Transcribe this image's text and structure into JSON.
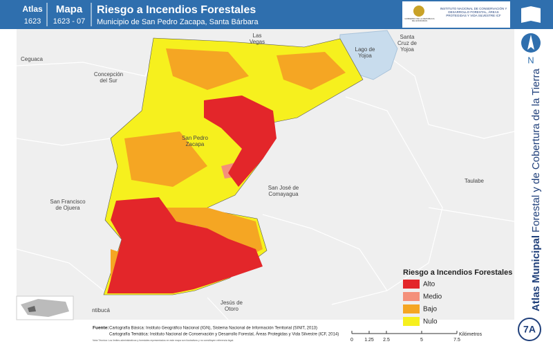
{
  "header": {
    "atlas_label": "Atlas",
    "atlas_code": "1623",
    "map_label": "Mapa",
    "map_code": "1623 - 07",
    "title": "Riesgo a Incendios Forestales",
    "subtitle": "Municipio de San Pedro Zacapa, Santa Bárbara",
    "logo_left": "GOBIERNO DE LA REPÚBLICA DE HONDURAS",
    "logo_right": "INSTITUTO NACIONAL DE CONSERVACIÓN Y DESARROLLO FORESTAL, ÁREAS PROTEGIDAS Y VIDA SILVESTRE ICF"
  },
  "side": {
    "north": "N",
    "atlas_bold": "Atlas Municipal",
    "atlas_rest": "Forestal y de Cobertura de la Tierra",
    "badge": "7A"
  },
  "places": [
    {
      "lines": [
        "Las",
        "Vegas"
      ]
    },
    {
      "lines": [
        "Santa",
        "Cruz de",
        "Yojoa"
      ]
    },
    {
      "lines": [
        "Lago de",
        "Yojoa"
      ]
    },
    {
      "lines": [
        "Ceguaca"
      ]
    },
    {
      "lines": [
        "Concepción",
        "del Sur"
      ]
    },
    {
      "lines": [
        "San Pedro",
        "Zacapa"
      ]
    },
    {
      "lines": [
        "San José de",
        "Comayagua"
      ]
    },
    {
      "lines": [
        "Taulabe"
      ]
    },
    {
      "lines": [
        "San Francisco",
        "de Ojuera"
      ]
    },
    {
      "lines": [
        "Jesús de",
        "Otoro"
      ]
    },
    {
      "lines": [
        "ntibucá"
      ]
    }
  ],
  "legend": {
    "title": "Riesgo a Incendios Forestales",
    "items": [
      {
        "label": "Alto",
        "color": "#e3262a"
      },
      {
        "label": "Medio",
        "color": "#f4907a"
      },
      {
        "label": "Bajo",
        "color": "#f5a623"
      },
      {
        "label": "Nulo",
        "color": "#f6f01e"
      }
    ]
  },
  "footer": {
    "source_label": "Fuente:",
    "lines": [
      "Cartografía Básica: Instituto Geográfico Nacional (IGN), Sistema Nacional de Información Territorial (SINIT, 2013)",
      "Cartografía Temática: Instituto Nacional de Conservación y Desarrollo Forestal, Áreas Protegidas y Vida Silvestre (ICF, 2014)"
    ],
    "note": "Nota Técnica: Los límites administrativos y forestales representados en este mapa son ilustrativos y no constituyen referencia legal."
  },
  "scale": {
    "ticks": [
      "0",
      "1.25",
      "2.5",
      "5",
      "7.5"
    ],
    "unit": "Kilómetros"
  }
}
